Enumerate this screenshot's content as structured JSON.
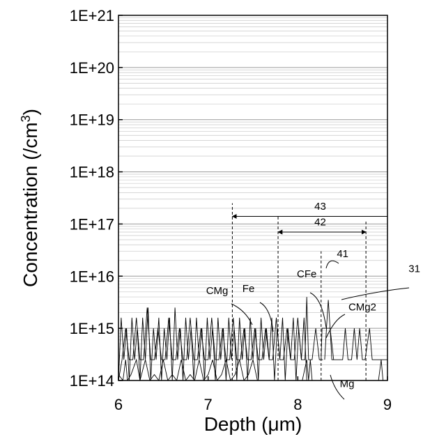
{
  "chart_data": {
    "type": "line",
    "xlabel": "Depth (μm)",
    "ylabel_main": "Concentration (/cm",
    "ylabel_sup": "3",
    "ylabel_tail": ")",
    "x_scale": "linear",
    "y_scale": "log",
    "xlim": [
      6,
      9
    ],
    "ylim": [
      100000000000000.0,
      1e+21
    ],
    "x_ticks": [
      6,
      7,
      8,
      9
    ],
    "x_tick_labels": [
      "6",
      "7",
      "8",
      "9"
    ],
    "y_ticks": [
      100000000000000.0,
      1000000000000000.0,
      1e+16,
      1e+17,
      1e+18,
      1e+19,
      1e+20,
      1e+21
    ],
    "y_tick_labels": [
      "1E+14",
      "1E+15",
      "1E+16",
      "1E+17",
      "1E+18",
      "1E+19",
      "1E+20",
      "1E+21"
    ],
    "grid": "horizontal minor log gridlines",
    "series": [
      {
        "name": "Mg",
        "color": "#000000",
        "x": [
          6.0,
          6.05,
          6.08,
          6.1,
          6.14,
          6.2,
          6.24,
          6.3,
          6.35,
          6.4,
          6.45,
          6.5,
          6.55,
          6.6,
          6.65,
          6.7,
          6.75,
          6.8,
          6.85,
          6.9,
          6.95,
          7.0,
          7.05,
          7.1,
          7.15,
          7.2,
          7.25,
          7.3,
          7.35,
          7.4,
          7.45,
          7.5,
          7.55,
          7.6,
          7.7,
          7.8,
          7.9,
          8.0,
          8.05,
          8.1,
          8.12,
          8.14,
          8.16,
          8.2,
          8.3,
          8.5,
          8.7,
          8.9,
          8.93,
          8.95,
          9.0
        ],
        "y": [
          130000000000000.0,
          100000000000000.0,
          250000000000000.0,
          100000000000000.0,
          130000000000000.0,
          250000000000000.0,
          100000000000000.0,
          250000000000000.0,
          100000000000000.0,
          130000000000000.0,
          100000000000000.0,
          250000000000000.0,
          100000000000000.0,
          130000000000000.0,
          100000000000000.0,
          250000000000000.0,
          100000000000000.0,
          130000000000000.0,
          100000000000000.0,
          250000000000000.0,
          100000000000000.0,
          130000000000000.0,
          250000000000000.0,
          100000000000000.0,
          130000000000000.0,
          250000000000000.0,
          100000000000000.0,
          130000000000000.0,
          250000000000000.0,
          100000000000000.0,
          130000000000000.0,
          250000000000000.0,
          100000000000000.0,
          100000000000000.0,
          100000000000000.0,
          100000000000000.0,
          100000000000000.0,
          100000000000000.0,
          100000000000000.0,
          250000000000000.0,
          100000000000000.0,
          250000000000000.0,
          100000000000000.0,
          100000000000000.0,
          100000000000000.0,
          100000000000000.0,
          100000000000000.0,
          100000000000000.0,
          250000000000000.0,
          100000000000000.0,
          100000000000000.0
        ]
      },
      {
        "name": "Fe",
        "color": "#000000",
        "x": [
          6.0,
          6.03,
          6.06,
          6.09,
          6.12,
          6.15,
          6.18,
          6.21,
          6.24,
          6.27,
          6.3,
          6.33,
          6.36,
          6.39,
          6.42,
          6.45,
          6.48,
          6.51,
          6.54,
          6.57,
          6.6,
          6.63,
          6.66,
          6.69,
          6.72,
          6.75,
          6.78,
          6.81,
          6.84,
          6.87,
          6.9,
          6.93,
          6.96,
          6.99,
          7.02,
          7.05,
          7.08,
          7.11,
          7.14,
          7.17,
          7.2,
          7.23,
          7.26,
          7.29,
          7.32,
          7.35,
          7.38,
          7.41,
          7.44,
          7.47,
          7.5,
          7.53,
          7.56,
          7.59,
          7.62,
          7.65,
          7.68,
          7.71,
          7.74,
          7.77,
          7.8,
          7.83,
          7.86,
          7.89,
          7.92,
          7.95,
          7.98,
          8.01,
          8.04,
          8.07,
          8.1,
          8.13,
          8.16
        ],
        "y": [
          100000000000000.0,
          1600000000000000.0,
          250000000000000.0,
          1000000000000000.0,
          100000000000000.0,
          1600000000000000.0,
          250000000000000.0,
          1000000000000000.0,
          100000000000000.0,
          1600000000000000.0,
          250000000000000.0,
          2500000000000000.0,
          100000000000000.0,
          1000000000000000.0,
          250000000000000.0,
          1600000000000000.0,
          100000000000000.0,
          1000000000000000.0,
          250000000000000.0,
          1600000000000000.0,
          100000000000000.0,
          2500000000000000.0,
          250000000000000.0,
          1000000000000000.0,
          100000000000000.0,
          1600000000000000.0,
          250000000000000.0,
          1000000000000000.0,
          100000000000000.0,
          1600000000000000.0,
          250000000000000.0,
          1000000000000000.0,
          100000000000000.0,
          1600000000000000.0,
          250000000000000.0,
          1000000000000000.0,
          100000000000000.0,
          1600000000000000.0,
          250000000000000.0,
          1000000000000000.0,
          100000000000000.0,
          1600000000000000.0,
          250000000000000.0,
          1000000000000000.0,
          100000000000000.0,
          1600000000000000.0,
          250000000000000.0,
          1000000000000000.0,
          100000000000000.0,
          1600000000000000.0,
          250000000000000.0,
          1000000000000000.0,
          100000000000000.0,
          1600000000000000.0,
          250000000000000.0,
          1000000000000000.0,
          250000000000000.0,
          1600000000000000.0,
          100000000000000.0,
          1000000000000000.0,
          250000000000000.0,
          1600000000000000.0,
          100000000000000.0,
          1000000000000000.0,
          250000000000000.0,
          1600000000000000.0,
          100000000000000.0,
          1000000000000000.0,
          250000000000000.0,
          1600000000000000.0,
          100000000000000.0,
          100000000000000.0,
          100000000000000.0
        ]
      },
      {
        "name": "CMg",
        "color": "#000000",
        "x": [
          6.0,
          6.04,
          6.08,
          6.12,
          6.16,
          6.2,
          6.24,
          6.28,
          6.32,
          6.36,
          6.4,
          6.44,
          6.48,
          6.52,
          6.56,
          6.6,
          6.64,
          6.68,
          6.72,
          6.76,
          6.8,
          6.84,
          6.88,
          6.92,
          6.96,
          7.0,
          7.04,
          7.08,
          7.12,
          7.16,
          7.2,
          7.24,
          7.28,
          7.32,
          7.36,
          7.4,
          7.44,
          7.48,
          7.52,
          7.56,
          7.6,
          7.64,
          7.68,
          7.72,
          7.76,
          7.8,
          7.84,
          7.88,
          7.92,
          7.96,
          8.0,
          8.04,
          8.08,
          8.1,
          8.12,
          8.16,
          8.2,
          8.24,
          8.28
        ],
        "y": [
          100000000000000.0,
          250000000000000.0,
          1000000000000000.0,
          250000000000000.0,
          250000000000000.0,
          1600000000000000.0,
          250000000000000.0,
          250000000000000.0,
          2500000000000000.0,
          250000000000000.0,
          250000000000000.0,
          1000000000000000.0,
          250000000000000.0,
          250000000000000.0,
          1600000000000000.0,
          250000000000000.0,
          250000000000000.0,
          1000000000000000.0,
          250000000000000.0,
          250000000000000.0,
          1600000000000000.0,
          250000000000000.0,
          250000000000000.0,
          1000000000000000.0,
          250000000000000.0,
          250000000000000.0,
          1600000000000000.0,
          250000000000000.0,
          250000000000000.0,
          1000000000000000.0,
          250000000000000.0,
          250000000000000.0,
          1600000000000000.0,
          250000000000000.0,
          250000000000000.0,
          1000000000000000.0,
          250000000000000.0,
          250000000000000.0,
          1000000000000000.0,
          250000000000000.0,
          250000000000000.0,
          1000000000000000.0,
          250000000000000.0,
          250000000000000.0,
          1600000000000000.0,
          250000000000000.0,
          250000000000000.0,
          1000000000000000.0,
          250000000000000.0,
          250000000000000.0,
          1600000000000000.0,
          250000000000000.0,
          250000000000000.0,
          4000000000000000.0,
          250000000000000.0,
          250000000000000.0,
          1000000000000000.0,
          250000000000000.0,
          250000000000000.0
        ]
      },
      {
        "name": "CMg2",
        "color": "#000000",
        "x": [
          8.26,
          8.27,
          8.3,
          8.33,
          8.36,
          8.4,
          8.45,
          8.5,
          8.53,
          8.56,
          8.6,
          8.63,
          8.66,
          8.69,
          8.72,
          8.75,
          8.8,
          8.83,
          8.86,
          8.9,
          8.95,
          9.0
        ],
        "y": [
          250000000000000.0,
          1000000000000000.0,
          1000000000000000.0,
          1000000000000000.0,
          1000000000000000.0,
          250000000000000.0,
          250000000000000.0,
          250000000000000.0,
          1000000000000000.0,
          250000000000000.0,
          250000000000000.0,
          1000000000000000.0,
          250000000000000.0,
          1000000000000000.0,
          250000000000000.0,
          250000000000000.0,
          1000000000000000.0,
          250000000000000.0,
          250000000000000.0,
          250000000000000.0,
          250000000000000.0,
          250000000000000.0
        ]
      },
      {
        "name": "CFe",
        "color": "#000000",
        "x": [
          8.3,
          8.32,
          8.34,
          8.36,
          8.38,
          8.4
        ],
        "y": [
          250000000000000.0,
          1000000000000000.0,
          3500000000000000.0,
          1000000000000000.0,
          250000000000000.0,
          250000000000000.0
        ]
      }
    ],
    "reference_lines": [
      {
        "x": 7.27,
        "from": 100000000000000.0,
        "to": 2.5e+17
      },
      {
        "x": 7.78,
        "from": 100000000000000.0,
        "to": 1.5e+17
      },
      {
        "x": 8.26,
        "from": 100000000000000.0,
        "to": 3e+16
      },
      {
        "x": 8.76,
        "from": 100000000000000.0,
        "to": 1.2e+17
      }
    ],
    "range_arrows": [
      {
        "label": "43",
        "x1": 7.27,
        "x2": 9.0,
        "y": 1.4e+17,
        "label_x": 8.25,
        "label_y": 2.2e+17
      },
      {
        "label": "42",
        "x1": 7.78,
        "x2": 8.76,
        "y": 7e+16,
        "label_x": 8.25,
        "label_y": 1.1e+17
      }
    ],
    "annotations": [
      {
        "label": "41",
        "x": 8.5,
        "y": 2.3e+16
      },
      {
        "label": "31",
        "x": 9.3,
        "y": 1.2e+16
      },
      {
        "label": "CMg",
        "x": 7.1,
        "y": 4500000000000000.0
      },
      {
        "label": "Fe",
        "x": 7.45,
        "y": 5000000000000000.0
      },
      {
        "label": "CFe",
        "x": 8.1,
        "y": 9500000000000000.0
      },
      {
        "label": "CMg2",
        "x": 8.72,
        "y": 2200000000000000.0
      },
      {
        "label": "Mg",
        "x": 8.55,
        "y": 75000000000000.0
      }
    ]
  }
}
